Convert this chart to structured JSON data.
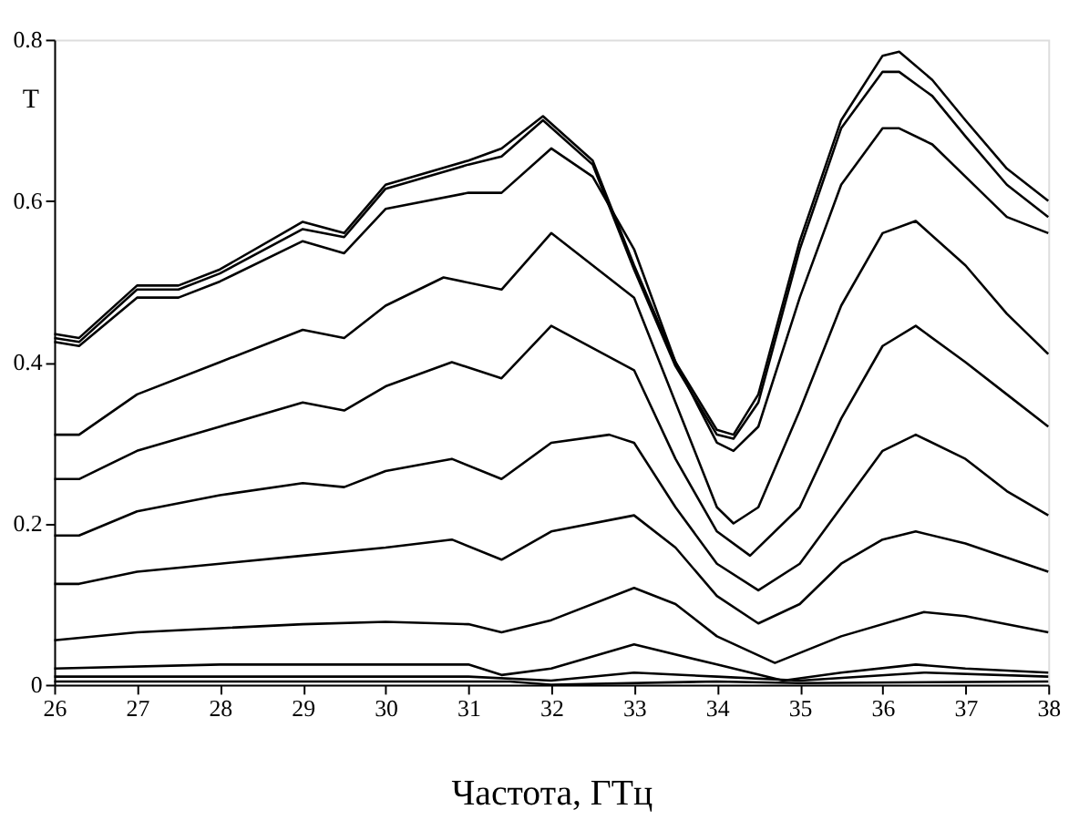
{
  "chart_data": {
    "type": "line",
    "xlabel": "Частота, ГТц",
    "ylabel": "T",
    "xlim": [
      26,
      38
    ],
    "ylim": [
      0,
      0.8
    ],
    "xticks": [
      26,
      27,
      28,
      29,
      30,
      31,
      32,
      33,
      34,
      35,
      36,
      37,
      38
    ],
    "yticks": [
      0,
      0.2,
      0.4,
      0.6,
      0.8
    ],
    "grid": false,
    "legend": false,
    "marker": "none",
    "line_style": "solid",
    "series": [
      {
        "color": "#000000",
        "x": [
          26,
          26.3,
          27,
          27.5,
          28,
          29,
          29.5,
          30,
          31,
          31.4,
          31.9,
          32.5,
          33,
          33.5,
          34,
          34.2,
          34.5,
          35,
          35.5,
          36,
          36.2,
          36.6,
          37,
          37.5,
          38
        ],
        "values": [
          0.435,
          0.43,
          0.495,
          0.495,
          0.515,
          0.574,
          0.56,
          0.62,
          0.65,
          0.665,
          0.705,
          0.65,
          0.52,
          0.4,
          0.316,
          0.31,
          0.36,
          0.55,
          0.7,
          0.78,
          0.785,
          0.75,
          0.7,
          0.64,
          0.6
        ]
      },
      {
        "color": "#000000",
        "x": [
          26,
          26.3,
          27,
          27.5,
          28,
          29,
          29.5,
          30,
          31,
          31.4,
          31.9,
          32.5,
          33,
          33.5,
          34,
          34.2,
          34.5,
          35,
          35.5,
          36,
          36.2,
          36.6,
          37,
          37.5,
          38
        ],
        "values": [
          0.43,
          0.425,
          0.49,
          0.49,
          0.51,
          0.565,
          0.555,
          0.615,
          0.645,
          0.655,
          0.7,
          0.645,
          0.515,
          0.395,
          0.31,
          0.305,
          0.35,
          0.54,
          0.69,
          0.76,
          0.76,
          0.73,
          0.68,
          0.62,
          0.58
        ]
      },
      {
        "color": "#000000",
        "x": [
          26,
          26.3,
          27,
          27.5,
          28,
          29,
          29.5,
          30,
          31,
          31.4,
          32,
          32.5,
          33,
          33.5,
          34,
          34.2,
          34.5,
          35,
          35.5,
          36,
          36.2,
          36.6,
          37,
          37.5,
          38
        ],
        "values": [
          0.425,
          0.42,
          0.48,
          0.48,
          0.5,
          0.55,
          0.535,
          0.59,
          0.61,
          0.61,
          0.665,
          0.63,
          0.54,
          0.4,
          0.3,
          0.29,
          0.32,
          0.48,
          0.62,
          0.69,
          0.69,
          0.67,
          0.63,
          0.58,
          0.56
        ]
      },
      {
        "color": "#000000",
        "x": [
          26,
          26.3,
          27,
          28,
          29,
          29.5,
          30,
          30.7,
          31.4,
          32,
          33,
          33.5,
          34,
          34.2,
          34.5,
          35,
          35.5,
          36,
          36.4,
          37,
          37.5,
          38
        ],
        "values": [
          0.31,
          0.31,
          0.36,
          0.4,
          0.44,
          0.43,
          0.47,
          0.505,
          0.49,
          0.56,
          0.48,
          0.35,
          0.22,
          0.2,
          0.22,
          0.34,
          0.47,
          0.56,
          0.575,
          0.52,
          0.46,
          0.41
        ]
      },
      {
        "color": "#000000",
        "x": [
          26,
          26.3,
          27,
          28,
          29,
          29.5,
          30,
          30.8,
          31.4,
          32,
          33,
          33.5,
          34,
          34.4,
          35,
          35.5,
          36,
          36.4,
          37,
          37.5,
          38
        ],
        "values": [
          0.255,
          0.255,
          0.29,
          0.32,
          0.35,
          0.34,
          0.37,
          0.4,
          0.38,
          0.445,
          0.39,
          0.28,
          0.19,
          0.16,
          0.22,
          0.33,
          0.42,
          0.445,
          0.4,
          0.36,
          0.32
        ]
      },
      {
        "color": "#000000",
        "x": [
          26,
          26.3,
          27,
          28,
          29,
          29.5,
          30,
          30.8,
          31.4,
          32,
          32.7,
          33,
          33.5,
          34,
          34.5,
          35,
          35.5,
          36,
          36.4,
          37,
          37.5,
          38
        ],
        "values": [
          0.185,
          0.185,
          0.215,
          0.235,
          0.25,
          0.245,
          0.265,
          0.28,
          0.255,
          0.3,
          0.31,
          0.3,
          0.22,
          0.15,
          0.117,
          0.15,
          0.22,
          0.29,
          0.31,
          0.28,
          0.24,
          0.21
        ]
      },
      {
        "color": "#000000",
        "x": [
          26,
          26.3,
          27,
          28,
          29,
          30,
          30.8,
          31.4,
          32,
          33,
          33.5,
          34,
          34.5,
          35,
          35.5,
          36,
          36.4,
          37,
          38
        ],
        "values": [
          0.125,
          0.125,
          0.14,
          0.15,
          0.16,
          0.17,
          0.18,
          0.155,
          0.19,
          0.21,
          0.17,
          0.11,
          0.076,
          0.1,
          0.15,
          0.18,
          0.19,
          0.175,
          0.14
        ]
      },
      {
        "color": "#000000",
        "x": [
          26,
          27,
          28,
          29,
          30,
          31,
          31.4,
          32,
          33,
          33.5,
          34,
          34.7,
          35.5,
          36.5,
          37,
          38
        ],
        "values": [
          0.055,
          0.065,
          0.07,
          0.075,
          0.078,
          0.075,
          0.065,
          0.08,
          0.12,
          0.1,
          0.06,
          0.027,
          0.06,
          0.09,
          0.085,
          0.065
        ]
      },
      {
        "color": "#000000",
        "x": [
          26,
          28,
          31,
          31.4,
          32,
          33,
          34,
          34.8,
          35.5,
          36.4,
          37,
          38
        ],
        "values": [
          0.02,
          0.025,
          0.025,
          0.012,
          0.02,
          0.05,
          0.025,
          0.005,
          0.015,
          0.025,
          0.02,
          0.015
        ]
      },
      {
        "color": "#000000",
        "x": [
          26,
          31,
          32,
          33,
          34,
          35,
          36.5,
          38
        ],
        "values": [
          0.01,
          0.01,
          0.005,
          0.015,
          0.01,
          0.005,
          0.015,
          0.01
        ]
      },
      {
        "color": "#000000",
        "x": [
          26,
          31.5,
          32,
          34,
          35,
          38
        ],
        "values": [
          0.004,
          0.004,
          0.0,
          0.004,
          0.002,
          0.004
        ]
      }
    ]
  }
}
